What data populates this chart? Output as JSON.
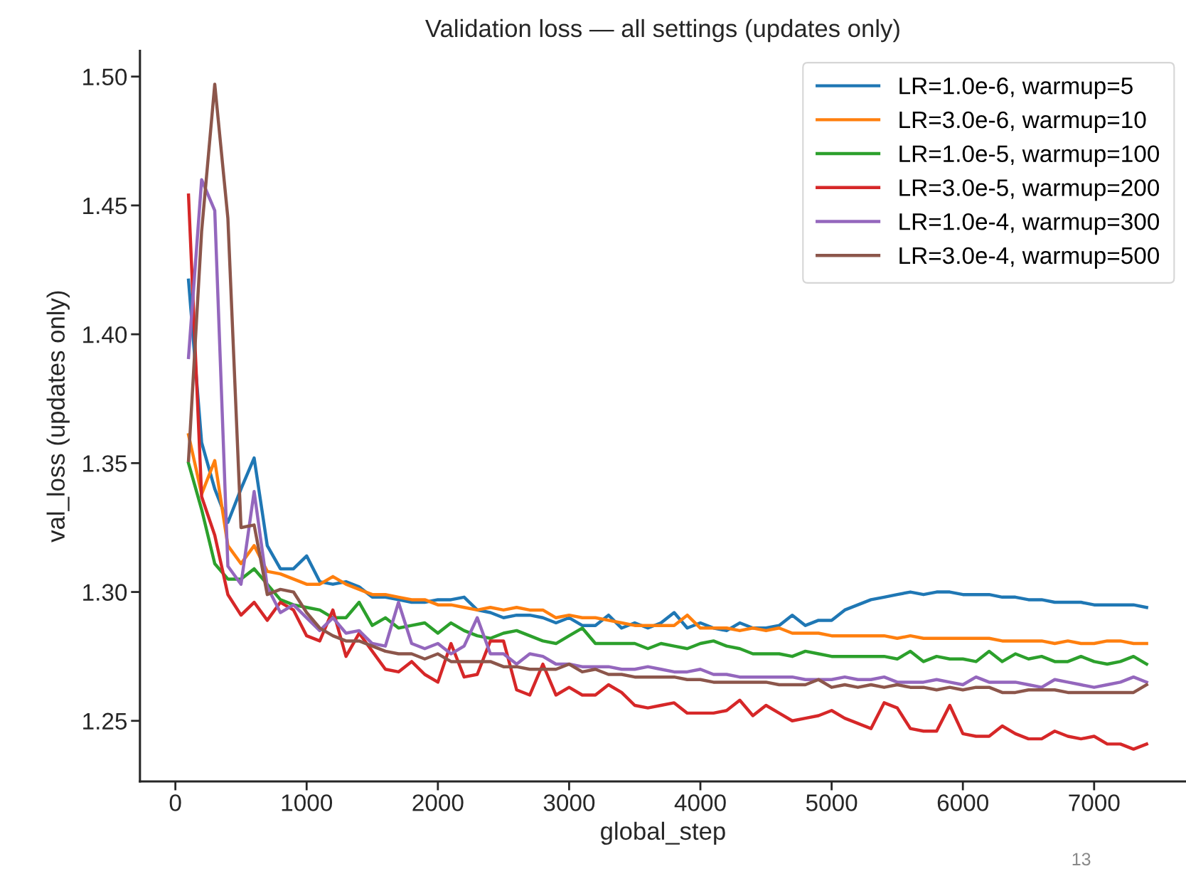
{
  "chart_data": {
    "type": "line",
    "title": "Validation loss — all settings (updates only)",
    "xlabel": "global_step",
    "ylabel": "val_loss (updates only)",
    "x": [
      100,
      200,
      300,
      400,
      500,
      600,
      700,
      800,
      900,
      1000,
      1100,
      1200,
      1300,
      1400,
      1500,
      1600,
      1700,
      1800,
      1900,
      2000,
      2100,
      2200,
      2300,
      2400,
      2500,
      2600,
      2700,
      2800,
      2900,
      3000,
      3100,
      3200,
      3300,
      3400,
      3500,
      3600,
      3700,
      3800,
      3900,
      4000,
      4100,
      4200,
      4300,
      4400,
      4500,
      4600,
      4700,
      4800,
      4900,
      5000,
      5100,
      5200,
      5300,
      5400,
      5500,
      5600,
      5700,
      5800,
      5900,
      6000,
      6100,
      6200,
      6300,
      6400,
      6500,
      6600,
      6700,
      6800,
      6900,
      7000,
      7100,
      7200,
      7300,
      7400
    ],
    "series": [
      {
        "name": "LR=1.0e-6, warmup=5",
        "color": "#1f77b4",
        "values": [
          1.421,
          1.358,
          1.34,
          1.327,
          1.34,
          1.352,
          1.318,
          1.309,
          1.309,
          1.314,
          1.304,
          1.303,
          1.304,
          1.302,
          1.298,
          1.298,
          1.297,
          1.296,
          1.296,
          1.297,
          1.297,
          1.298,
          1.293,
          1.292,
          1.29,
          1.291,
          1.291,
          1.29,
          1.288,
          1.29,
          1.287,
          1.287,
          1.291,
          1.286,
          1.288,
          1.286,
          1.288,
          1.292,
          1.286,
          1.288,
          1.286,
          1.285,
          1.288,
          1.286,
          1.286,
          1.287,
          1.291,
          1.287,
          1.289,
          1.289,
          1.293,
          1.295,
          1.297,
          1.298,
          1.299,
          1.3,
          1.299,
          1.3,
          1.3,
          1.299,
          1.299,
          1.299,
          1.298,
          1.298,
          1.297,
          1.297,
          1.296,
          1.296,
          1.296,
          1.295,
          1.295,
          1.295,
          1.295,
          1.294
        ]
      },
      {
        "name": "LR=3.0e-6, warmup=10",
        "color": "#ff7f0e",
        "values": [
          1.361,
          1.338,
          1.351,
          1.318,
          1.311,
          1.318,
          1.308,
          1.307,
          1.305,
          1.303,
          1.303,
          1.306,
          1.303,
          1.301,
          1.299,
          1.299,
          1.298,
          1.297,
          1.297,
          1.295,
          1.295,
          1.294,
          1.293,
          1.294,
          1.293,
          1.294,
          1.293,
          1.293,
          1.29,
          1.291,
          1.29,
          1.29,
          1.289,
          1.288,
          1.287,
          1.287,
          1.287,
          1.287,
          1.291,
          1.286,
          1.286,
          1.286,
          1.285,
          1.286,
          1.285,
          1.286,
          1.284,
          1.284,
          1.284,
          1.283,
          1.283,
          1.283,
          1.283,
          1.283,
          1.282,
          1.283,
          1.282,
          1.282,
          1.282,
          1.282,
          1.282,
          1.282,
          1.281,
          1.281,
          1.281,
          1.281,
          1.28,
          1.281,
          1.28,
          1.28,
          1.281,
          1.281,
          1.28,
          1.28
        ]
      },
      {
        "name": "LR=1.0e-5, warmup=100",
        "color": "#2ca02c",
        "values": [
          1.35,
          1.332,
          1.311,
          1.305,
          1.305,
          1.309,
          1.303,
          1.297,
          1.295,
          1.294,
          1.293,
          1.29,
          1.29,
          1.296,
          1.287,
          1.29,
          1.286,
          1.287,
          1.288,
          1.284,
          1.288,
          1.285,
          1.283,
          1.282,
          1.284,
          1.285,
          1.283,
          1.281,
          1.28,
          1.283,
          1.286,
          1.28,
          1.28,
          1.28,
          1.28,
          1.278,
          1.28,
          1.279,
          1.278,
          1.28,
          1.281,
          1.279,
          1.278,
          1.276,
          1.276,
          1.276,
          1.275,
          1.277,
          1.276,
          1.275,
          1.275,
          1.275,
          1.275,
          1.275,
          1.274,
          1.277,
          1.273,
          1.275,
          1.274,
          1.274,
          1.273,
          1.277,
          1.273,
          1.276,
          1.274,
          1.275,
          1.273,
          1.273,
          1.275,
          1.273,
          1.272,
          1.273,
          1.275,
          1.272
        ]
      },
      {
        "name": "LR=3.0e-5, warmup=200",
        "color": "#d62728",
        "values": [
          1.454,
          1.337,
          1.322,
          1.299,
          1.291,
          1.296,
          1.289,
          1.296,
          1.293,
          1.283,
          1.281,
          1.293,
          1.275,
          1.284,
          1.277,
          1.27,
          1.269,
          1.273,
          1.268,
          1.265,
          1.28,
          1.267,
          1.268,
          1.281,
          1.281,
          1.262,
          1.26,
          1.272,
          1.26,
          1.263,
          1.26,
          1.26,
          1.264,
          1.261,
          1.256,
          1.255,
          1.256,
          1.257,
          1.253,
          1.253,
          1.253,
          1.254,
          1.258,
          1.252,
          1.256,
          1.253,
          1.25,
          1.251,
          1.252,
          1.254,
          1.251,
          1.249,
          1.247,
          1.257,
          1.255,
          1.247,
          1.246,
          1.246,
          1.256,
          1.245,
          1.244,
          1.244,
          1.248,
          1.245,
          1.243,
          1.243,
          1.246,
          1.244,
          1.243,
          1.244,
          1.241,
          1.241,
          1.239,
          1.241
        ]
      },
      {
        "name": "LR=1.0e-4, warmup=300",
        "color": "#9467bd",
        "values": [
          1.391,
          1.46,
          1.448,
          1.31,
          1.303,
          1.339,
          1.302,
          1.292,
          1.295,
          1.29,
          1.285,
          1.29,
          1.284,
          1.285,
          1.28,
          1.279,
          1.296,
          1.28,
          1.278,
          1.28,
          1.276,
          1.279,
          1.29,
          1.276,
          1.276,
          1.272,
          1.276,
          1.275,
          1.272,
          1.272,
          1.271,
          1.271,
          1.271,
          1.27,
          1.27,
          1.271,
          1.27,
          1.269,
          1.269,
          1.27,
          1.268,
          1.268,
          1.267,
          1.267,
          1.267,
          1.267,
          1.267,
          1.266,
          1.266,
          1.266,
          1.267,
          1.266,
          1.266,
          1.267,
          1.265,
          1.265,
          1.265,
          1.266,
          1.265,
          1.264,
          1.267,
          1.265,
          1.265,
          1.265,
          1.264,
          1.263,
          1.266,
          1.265,
          1.264,
          1.263,
          1.264,
          1.265,
          1.267,
          1.265
        ]
      },
      {
        "name": "LR=3.0e-4, warmup=500",
        "color": "#8c564b",
        "values": [
          1.351,
          1.44,
          1.497,
          1.445,
          1.325,
          1.326,
          1.299,
          1.301,
          1.3,
          1.292,
          1.286,
          1.283,
          1.281,
          1.281,
          1.279,
          1.277,
          1.276,
          1.276,
          1.274,
          1.276,
          1.273,
          1.273,
          1.273,
          1.273,
          1.271,
          1.271,
          1.27,
          1.27,
          1.27,
          1.272,
          1.269,
          1.27,
          1.268,
          1.268,
          1.267,
          1.267,
          1.267,
          1.267,
          1.266,
          1.266,
          1.265,
          1.265,
          1.265,
          1.265,
          1.265,
          1.264,
          1.264,
          1.264,
          1.266,
          1.263,
          1.264,
          1.263,
          1.264,
          1.263,
          1.264,
          1.263,
          1.263,
          1.262,
          1.263,
          1.262,
          1.263,
          1.263,
          1.261,
          1.261,
          1.262,
          1.262,
          1.262,
          1.261,
          1.261,
          1.261,
          1.261,
          1.261,
          1.261,
          1.264
        ]
      }
    ],
    "xlim": [
      -270,
      7700
    ],
    "ylim": [
      1.2265,
      1.51
    ],
    "xticks": [
      0,
      1000,
      2000,
      3000,
      4000,
      5000,
      6000,
      7000
    ],
    "yticks": [
      {
        "value": 1.25,
        "label": "1.25"
      },
      {
        "value": 1.3,
        "label": "1.30"
      },
      {
        "value": 1.35,
        "label": "1.35"
      },
      {
        "value": 1.4,
        "label": "1.40"
      },
      {
        "value": 1.45,
        "label": "1.45"
      },
      {
        "value": 1.5,
        "label": "1.50"
      }
    ],
    "grid": false,
    "legend": "top right",
    "marker": "none",
    "line_style": "solid",
    "annotations": [
      "13"
    ]
  }
}
